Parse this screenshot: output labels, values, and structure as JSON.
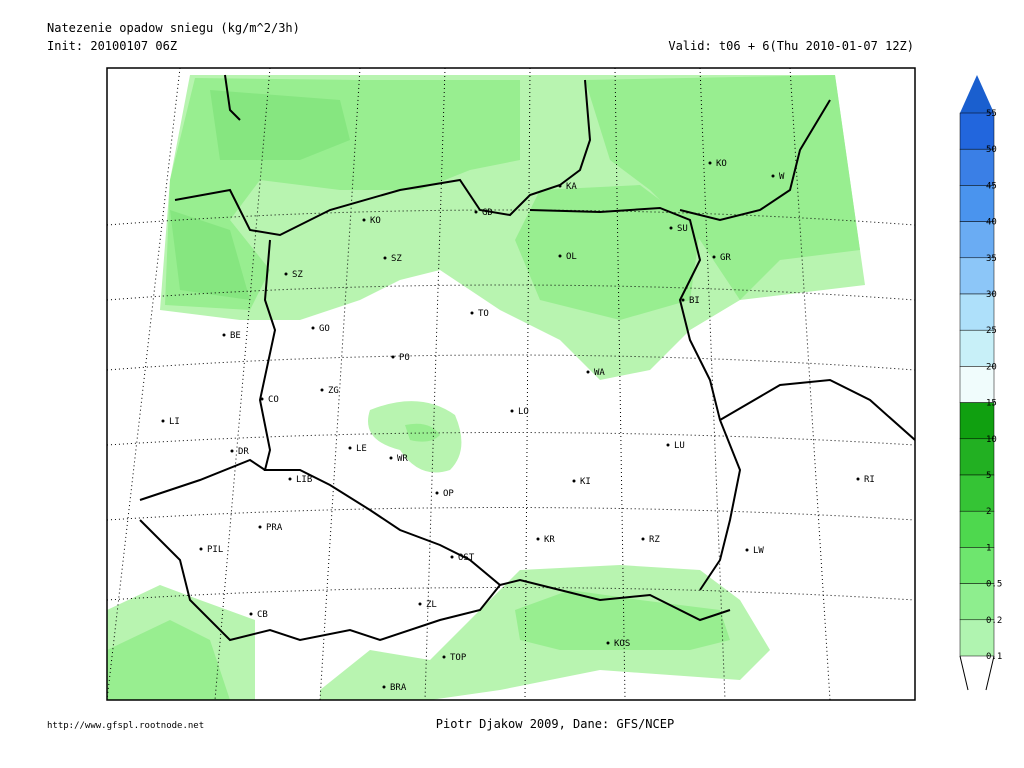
{
  "header": {
    "title": "Natezenie opadow sniegu (kg/m^2/3h)",
    "init": "Init: 20100107 06Z",
    "valid": "Valid: t06 + 6(Thu 2010-01-07 12Z)"
  },
  "stations": [
    "KO",
    "W",
    "KA",
    "GD",
    "KO",
    "SU",
    "OL",
    "SZ",
    "GR",
    "SZ",
    "BI",
    "TO",
    "GO",
    "BE",
    "PO",
    "WA",
    "ZG",
    "CO",
    "LO",
    "LI",
    "LU",
    "LE",
    "DR",
    "WR",
    "RI",
    "KI",
    "LIB",
    "OP",
    "PRA",
    "KR",
    "RZ",
    "PIL",
    "LW",
    "OST",
    "ZL",
    "CB",
    "KOS",
    "TOP",
    "BRA"
  ],
  "legend": [
    55,
    50,
    45,
    40,
    35,
    30,
    25,
    20,
    15,
    10,
    5,
    2,
    1,
    0.5,
    0.2,
    0.1
  ],
  "footer": {
    "url": "http://www.gfspl.rootnode.net",
    "credit": "Piotr Djakow 2009, Dane: GFS/NCEP"
  }
}
